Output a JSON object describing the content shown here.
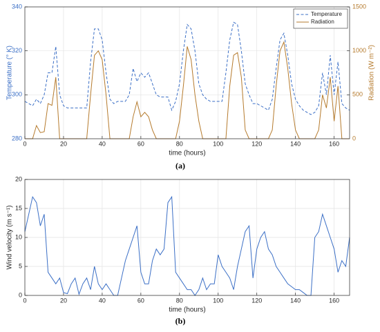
{
  "chart_data": [
    {
      "type": "line",
      "caption": "(a)",
      "xlabel": "time (hours)",
      "ylabel": "Temperature (° K)",
      "y2label": "Radiation (W m⁻²)",
      "xlim": [
        0,
        168
      ],
      "xticks": [
        0,
        20,
        40,
        60,
        80,
        100,
        120,
        140,
        160
      ],
      "ylim": [
        280,
        340
      ],
      "yticks": [
        280,
        300,
        320,
        340
      ],
      "y2lim": [
        0,
        1500
      ],
      "y2ticks": [
        0,
        500,
        1000,
        1500
      ],
      "grid": true,
      "legend": "upper right",
      "x": [
        0,
        2,
        4,
        6,
        8,
        10,
        12,
        14,
        16,
        18,
        20,
        22,
        24,
        26,
        28,
        30,
        32,
        34,
        36,
        38,
        40,
        42,
        44,
        46,
        48,
        50,
        52,
        54,
        56,
        58,
        60,
        62,
        64,
        66,
        68,
        70,
        72,
        74,
        76,
        78,
        80,
        82,
        84,
        86,
        88,
        90,
        92,
        94,
        96,
        98,
        100,
        102,
        104,
        106,
        108,
        110,
        112,
        114,
        116,
        118,
        120,
        122,
        124,
        126,
        128,
        130,
        132,
        134,
        136,
        138,
        140,
        142,
        144,
        146,
        148,
        150,
        152,
        154,
        156,
        158,
        160,
        162,
        164,
        166,
        168
      ],
      "series": [
        {
          "name": "Temperature",
          "color": "#3b6fc6",
          "linestyle": "dashed",
          "axis": "y",
          "values": [
            297,
            296,
            295,
            298,
            296,
            300,
            310,
            310,
            322,
            300,
            295,
            294,
            294,
            294,
            294,
            294,
            294,
            315,
            330,
            330,
            325,
            310,
            298,
            296,
            297,
            297,
            297,
            300,
            312,
            306,
            310,
            308,
            310,
            305,
            300,
            299,
            299,
            299,
            293,
            297,
            305,
            320,
            332,
            330,
            320,
            305,
            300,
            298,
            297,
            297,
            297,
            297,
            310,
            325,
            333,
            332,
            320,
            305,
            300,
            296,
            296,
            295,
            294,
            293,
            298,
            312,
            325,
            328,
            318,
            305,
            298,
            295,
            293,
            292,
            291,
            292,
            295,
            310,
            300,
            318,
            300,
            315,
            296,
            294,
            293
          ]
        },
        {
          "name": "Radiation",
          "color": "#b57a2c",
          "linestyle": "solid",
          "axis": "y2",
          "values": [
            0,
            0,
            0,
            150,
            70,
            80,
            400,
            380,
            700,
            0,
            0,
            0,
            0,
            0,
            0,
            0,
            0,
            500,
            950,
            1000,
            900,
            500,
            0,
            0,
            0,
            0,
            0,
            0,
            250,
            420,
            250,
            300,
            250,
            100,
            0,
            0,
            0,
            0,
            0,
            0,
            200,
            600,
            1050,
            900,
            500,
            200,
            0,
            0,
            0,
            0,
            0,
            0,
            0,
            600,
            950,
            980,
            700,
            100,
            0,
            0,
            0,
            0,
            0,
            0,
            100,
            600,
            1000,
            1100,
            800,
            400,
            100,
            0,
            0,
            0,
            0,
            0,
            100,
            500,
            350,
            700,
            200,
            600,
            0,
            0,
            0
          ]
        }
      ]
    },
    {
      "type": "line",
      "caption": "(b)",
      "xlabel": "time (hours)",
      "ylabel": "Wind velocity (m s⁻¹)",
      "xlim": [
        0,
        168
      ],
      "xticks": [
        0,
        20,
        40,
        60,
        80,
        100,
        120,
        140,
        160
      ],
      "ylim": [
        0,
        20
      ],
      "yticks": [
        0,
        5,
        10,
        15,
        20
      ],
      "grid": true,
      "x": [
        0,
        2,
        4,
        6,
        8,
        10,
        12,
        14,
        16,
        18,
        20,
        22,
        24,
        26,
        28,
        30,
        32,
        34,
        36,
        38,
        40,
        42,
        44,
        46,
        48,
        50,
        52,
        54,
        56,
        58,
        60,
        62,
        64,
        66,
        68,
        70,
        72,
        74,
        76,
        78,
        80,
        82,
        84,
        86,
        88,
        90,
        92,
        94,
        96,
        98,
        100,
        102,
        104,
        106,
        108,
        110,
        112,
        114,
        116,
        118,
        120,
        122,
        124,
        126,
        128,
        130,
        132,
        134,
        136,
        138,
        140,
        142,
        144,
        146,
        148,
        150,
        152,
        154,
        156,
        158,
        160,
        162,
        164,
        166,
        168
      ],
      "series": [
        {
          "color": "#3b6fc6",
          "linestyle": "solid",
          "axis": "y",
          "values": [
            11,
            14,
            17,
            16,
            12,
            14,
            4,
            3,
            2,
            3,
            0.5,
            0.3,
            2,
            3,
            0.2,
            2,
            3,
            1,
            5,
            2,
            1,
            2,
            1,
            0,
            0,
            3,
            6,
            8,
            10,
            12,
            4,
            2,
            2,
            6,
            8,
            7,
            8,
            16,
            17,
            4,
            3,
            2,
            1,
            1,
            0,
            1,
            3,
            1,
            2,
            2,
            7,
            5,
            4,
            3,
            1,
            5,
            8,
            11,
            12,
            3,
            8,
            10,
            11,
            8,
            7,
            5,
            4,
            3,
            2,
            1.5,
            1,
            1,
            0.5,
            0,
            0,
            10,
            11,
            14,
            12,
            10,
            8,
            4,
            6,
            5,
            10
          ]
        }
      ]
    }
  ]
}
